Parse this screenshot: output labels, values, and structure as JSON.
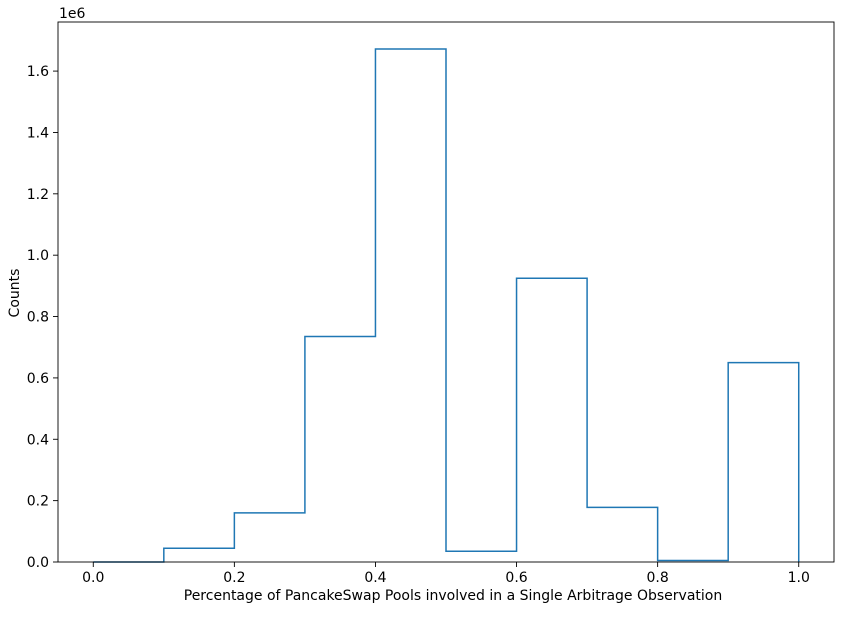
{
  "chart_data": {
    "type": "step-histogram",
    "xlabel": "Percentage of PancakeSwap Pools involved in a Single Arbitrage Observation",
    "ylabel": "Counts",
    "y_offset_text": "1e6",
    "y_multiplier": 1000000,
    "xlim": [
      -0.05,
      1.05
    ],
    "ylim": [
      0,
      1760000
    ],
    "x_ticks": [
      0.0,
      0.2,
      0.4,
      0.6,
      0.8,
      1.0
    ],
    "x_tick_labels": [
      "0.0",
      "0.2",
      "0.4",
      "0.6",
      "0.8",
      "1.0"
    ],
    "y_ticks": [
      0,
      200000,
      400000,
      600000,
      800000,
      1000000,
      1200000,
      1400000,
      1600000
    ],
    "y_tick_labels": [
      "0.0",
      "0.2",
      "0.4",
      "0.6",
      "0.8",
      "1.0",
      "1.2",
      "1.4",
      "1.6"
    ],
    "bin_edges": [
      0.0,
      0.1,
      0.2,
      0.3,
      0.4,
      0.5,
      0.6,
      0.7,
      0.8,
      0.9,
      1.0
    ],
    "counts": [
      0,
      45000,
      160000,
      735000,
      1672000,
      35000,
      925000,
      178000,
      5000,
      650000
    ],
    "line_color": "#1f77b4",
    "grid": false
  }
}
